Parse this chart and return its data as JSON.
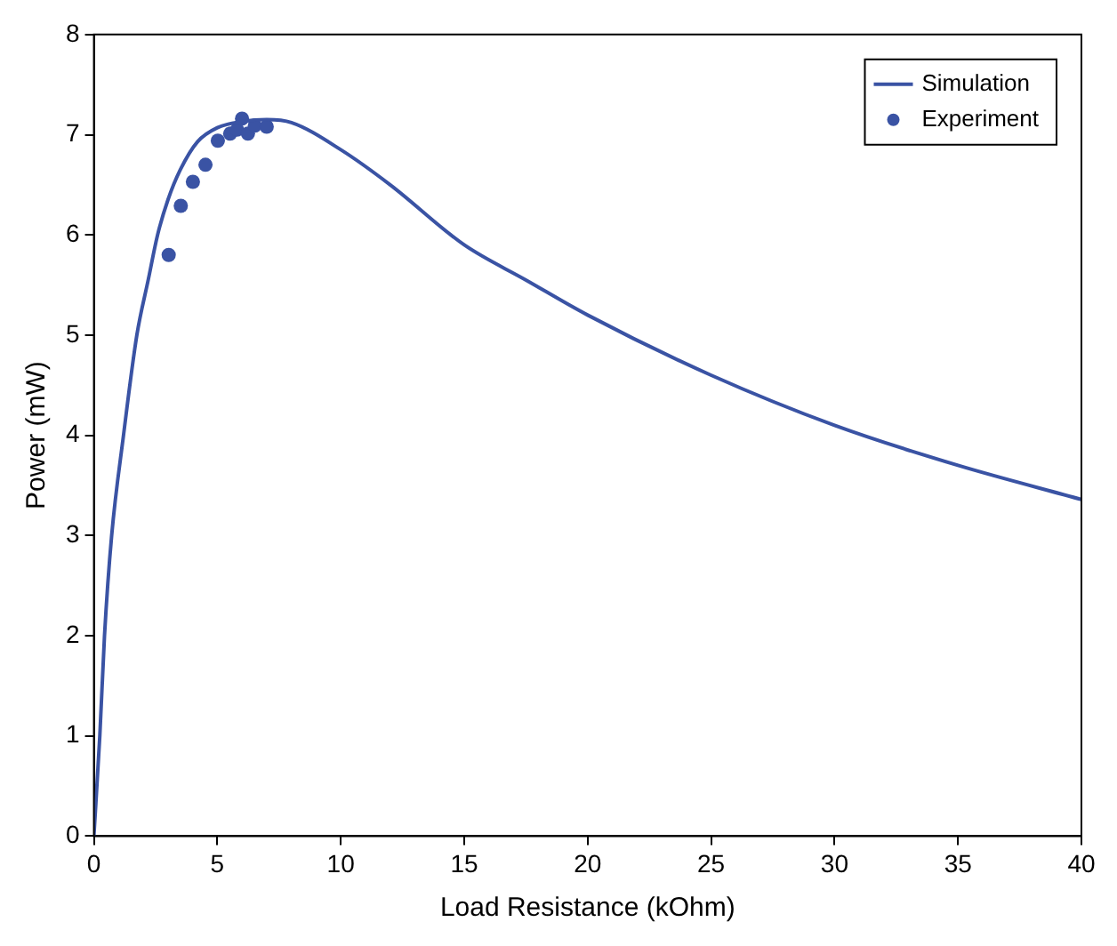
{
  "chart_data": {
    "type": "line",
    "xlabel": "Load Resistance (kOhm)",
    "ylabel": "Power (mW)",
    "xlim": [
      0,
      40
    ],
    "ylim": [
      0,
      8
    ],
    "xticks": [
      0,
      5,
      10,
      15,
      20,
      25,
      30,
      35,
      40
    ],
    "yticks": [
      0,
      1,
      2,
      3,
      4,
      5,
      6,
      7,
      8
    ],
    "grid": false,
    "legend": "top right",
    "series": [
      {
        "name": "Simulation",
        "color": "#3a53a4",
        "marker": "none",
        "line_style": "solid",
        "x": [
          0,
          0.24,
          0.43,
          0.72,
          1.2,
          1.74,
          2.2,
          2.58,
          3,
          3.5,
          4.2,
          5,
          6,
          7,
          8,
          10,
          12,
          15,
          17.5,
          20,
          25,
          30,
          35,
          40
        ],
        "values": [
          0,
          1,
          2,
          3,
          4,
          5,
          5.55,
          6,
          6.35,
          6.65,
          6.93,
          7.07,
          7.13,
          7.15,
          7.12,
          6.85,
          6.5,
          5.9,
          5.55,
          5.2,
          4.6,
          4.1,
          3.7,
          3.36
        ]
      },
      {
        "name": "Experiment",
        "type": "scatter",
        "color": "#3a53a4",
        "marker": "circle",
        "x": [
          3.03,
          3.52,
          4.01,
          4.52,
          5.02,
          5.52,
          5.8,
          6.0,
          6.24,
          6.52,
          7.0
        ],
        "values": [
          5.8,
          6.29,
          6.53,
          6.7,
          6.94,
          7.01,
          7.05,
          7.16,
          7.01,
          7.09,
          7.08
        ]
      }
    ]
  }
}
